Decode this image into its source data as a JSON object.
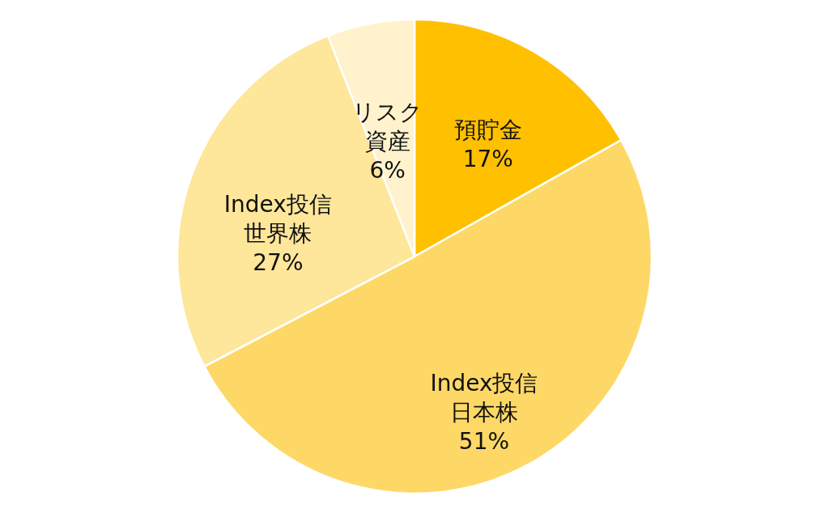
{
  "chart_data": {
    "type": "pie",
    "categories": [
      "預貯金",
      "Index投信日本株",
      "Index投信世界株",
      "リスク資産"
    ],
    "values": [
      17,
      51,
      27,
      6
    ],
    "value_labels": [
      "17%",
      "51%",
      "27%",
      "6%"
    ],
    "colors": [
      "#ffc000",
      "#fdd867",
      "#fee69a",
      "#fff2cc"
    ],
    "legend": false
  }
}
